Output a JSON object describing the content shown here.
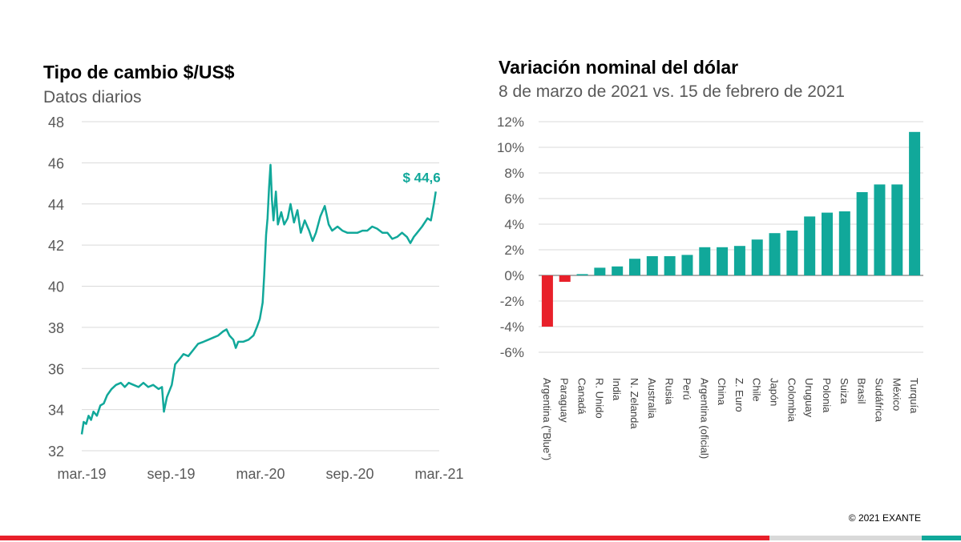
{
  "left_chart": {
    "title": "Tipo de cambio $/US$",
    "subtitle": "Datos diarios",
    "last_label": "$ 44,6"
  },
  "right_chart": {
    "title": "Variación nominal del dólar",
    "subtitle": "8 de marzo de 2021 vs. 15 de febrero de 2021"
  },
  "footer": {
    "copyright": "© 2021 EXANTE"
  },
  "colors": {
    "line": "#11A89A",
    "bar_positive": "#11A89A",
    "bar_negative": "#E8202A",
    "footer_red": "#E8202A",
    "footer_gray": "#D9D9D9",
    "footer_teal": "#11A89A"
  },
  "chart_data": [
    {
      "type": "line",
      "title": "Tipo de cambio $/US$",
      "subtitle": "Datos diarios",
      "xlabel": "",
      "ylabel": "",
      "ylim": [
        32,
        48
      ],
      "yticks": [
        32,
        34,
        36,
        38,
        40,
        42,
        44,
        46,
        48
      ],
      "xticks": [
        "mar.-19",
        "sep.-19",
        "mar.-20",
        "sep.-20",
        "mar.-21"
      ],
      "x_range": [
        "2019-03-01",
        "2021-03-01"
      ],
      "grid": true,
      "annotation": "$ 44,6",
      "series": [
        {
          "points": [
            [
              "2019-03-01",
              32.8
            ],
            [
              "2019-03-05",
              33.4
            ],
            [
              "2019-03-10",
              33.3
            ],
            [
              "2019-03-15",
              33.7
            ],
            [
              "2019-03-20",
              33.5
            ],
            [
              "2019-03-25",
              33.9
            ],
            [
              "2019-04-01",
              33.7
            ],
            [
              "2019-04-08",
              34.2
            ],
            [
              "2019-04-15",
              34.3
            ],
            [
              "2019-04-22",
              34.7
            ],
            [
              "2019-05-01",
              35.0
            ],
            [
              "2019-05-10",
              35.2
            ],
            [
              "2019-05-20",
              35.3
            ],
            [
              "2019-05-28",
              35.1
            ],
            [
              "2019-06-05",
              35.3
            ],
            [
              "2019-06-15",
              35.2
            ],
            [
              "2019-06-25",
              35.1
            ],
            [
              "2019-07-05",
              35.3
            ],
            [
              "2019-07-15",
              35.1
            ],
            [
              "2019-07-25",
              35.2
            ],
            [
              "2019-08-05",
              35.0
            ],
            [
              "2019-08-12",
              35.1
            ],
            [
              "2019-08-16",
              33.9
            ],
            [
              "2019-08-22",
              34.6
            ],
            [
              "2019-09-01",
              35.2
            ],
            [
              "2019-09-08",
              36.2
            ],
            [
              "2019-09-15",
              36.4
            ],
            [
              "2019-09-25",
              36.7
            ],
            [
              "2019-10-05",
              36.6
            ],
            [
              "2019-10-15",
              36.9
            ],
            [
              "2019-10-25",
              37.2
            ],
            [
              "2019-11-05",
              37.3
            ],
            [
              "2019-11-15",
              37.4
            ],
            [
              "2019-11-25",
              37.5
            ],
            [
              "2019-12-05",
              37.6
            ],
            [
              "2019-12-15",
              37.8
            ],
            [
              "2019-12-22",
              37.9
            ],
            [
              "2019-12-28",
              37.6
            ],
            [
              "2020-01-05",
              37.4
            ],
            [
              "2020-01-10",
              37.0
            ],
            [
              "2020-01-15",
              37.3
            ],
            [
              "2020-01-25",
              37.3
            ],
            [
              "2020-02-05",
              37.4
            ],
            [
              "2020-02-15",
              37.6
            ],
            [
              "2020-02-22",
              38.0
            ],
            [
              "2020-02-28",
              38.4
            ],
            [
              "2020-03-05",
              39.2
            ],
            [
              "2020-03-08",
              40.5
            ],
            [
              "2020-03-12",
              42.5
            ],
            [
              "2020-03-15",
              43.3
            ],
            [
              "2020-03-18",
              44.8
            ],
            [
              "2020-03-21",
              45.9
            ],
            [
              "2020-03-24",
              44.2
            ],
            [
              "2020-03-27",
              43.2
            ],
            [
              "2020-04-01",
              44.6
            ],
            [
              "2020-04-05",
              43.0
            ],
            [
              "2020-04-12",
              43.6
            ],
            [
              "2020-04-18",
              43.0
            ],
            [
              "2020-04-25",
              43.3
            ],
            [
              "2020-05-01",
              44.0
            ],
            [
              "2020-05-08",
              43.1
            ],
            [
              "2020-05-15",
              43.7
            ],
            [
              "2020-05-22",
              42.6
            ],
            [
              "2020-05-30",
              43.2
            ],
            [
              "2020-06-08",
              42.7
            ],
            [
              "2020-06-15",
              42.2
            ],
            [
              "2020-06-22",
              42.6
            ],
            [
              "2020-07-01",
              43.4
            ],
            [
              "2020-07-10",
              43.9
            ],
            [
              "2020-07-18",
              43.0
            ],
            [
              "2020-07-25",
              42.7
            ],
            [
              "2020-08-05",
              42.9
            ],
            [
              "2020-08-15",
              42.7
            ],
            [
              "2020-08-25",
              42.6
            ],
            [
              "2020-09-05",
              42.6
            ],
            [
              "2020-09-15",
              42.6
            ],
            [
              "2020-09-25",
              42.7
            ],
            [
              "2020-10-05",
              42.7
            ],
            [
              "2020-10-15",
              42.9
            ],
            [
              "2020-10-25",
              42.8
            ],
            [
              "2020-11-05",
              42.6
            ],
            [
              "2020-11-15",
              42.6
            ],
            [
              "2020-11-25",
              42.3
            ],
            [
              "2020-12-05",
              42.4
            ],
            [
              "2020-12-15",
              42.6
            ],
            [
              "2020-12-25",
              42.4
            ],
            [
              "2021-01-01",
              42.1
            ],
            [
              "2021-01-08",
              42.4
            ],
            [
              "2021-01-15",
              42.6
            ],
            [
              "2021-01-25",
              42.9
            ],
            [
              "2021-02-05",
              43.3
            ],
            [
              "2021-02-12",
              43.2
            ],
            [
              "2021-02-18",
              44.0
            ],
            [
              "2021-02-22",
              44.6
            ]
          ]
        }
      ]
    },
    {
      "type": "bar",
      "title": "Variación nominal del dólar",
      "subtitle": "8 de marzo de 2021 vs. 15 de febrero de 2021",
      "xlabel": "",
      "ylabel": "",
      "ylim": [
        -6,
        12
      ],
      "yticks": [
        -6,
        -4,
        -2,
        0,
        2,
        4,
        6,
        8,
        10,
        12
      ],
      "categories": [
        "Argentina (\"Blue\")",
        "Paraguay",
        "Canadá",
        "R. Unido",
        "India",
        "N. Zelanda",
        "Australia",
        "Rusia",
        "Perú",
        "Argentina (oficial)",
        "China",
        "Z. Euro",
        "Chile",
        "Japón",
        "Colombia",
        "Uruguay",
        "Polonia",
        "Suiza",
        "Brasil",
        "Sudáfrica",
        "México",
        "Turquía"
      ],
      "values": [
        -4.0,
        -0.5,
        0.1,
        0.6,
        0.7,
        1.3,
        1.5,
        1.5,
        1.6,
        2.2,
        2.2,
        2.3,
        2.8,
        3.3,
        3.5,
        4.6,
        4.9,
        5.0,
        6.5,
        7.1,
        7.1,
        11.2
      ],
      "grid": true
    }
  ]
}
